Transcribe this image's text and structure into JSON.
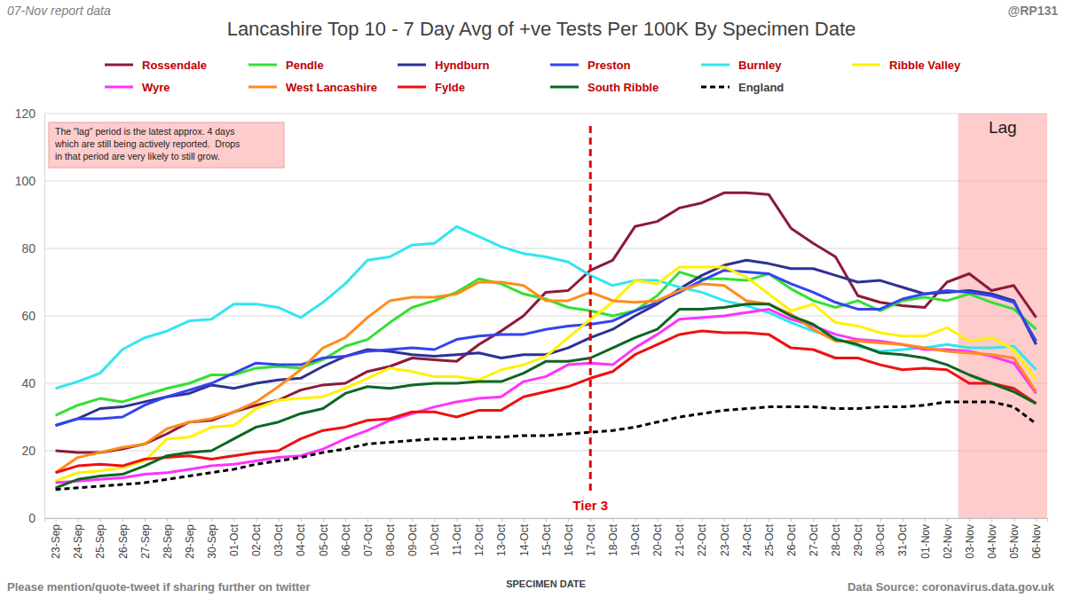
{
  "chart_data": {
    "type": "line",
    "title": "Lancashire Top 10 - 7 Day Avg of +ve Tests Per 100K By Specimen Date",
    "header_left": "07-Nov report data",
    "header_right": "@RP131",
    "x_label": "SPECIMEN DATE",
    "footer_left": "Please mention/quote-tweet if sharing further on twitter",
    "footer_right": "Data Source: coronavirus.data.gov.uk",
    "note": [
      "The \"lag\" period is the latest approx. 4 days",
      "which are still being actively reported.  Drops",
      "in that period are very likely to still grow."
    ],
    "vline": {
      "label": "Tier 3",
      "x": "17-Oct"
    },
    "shaded_region": {
      "label": "Lag",
      "from": "03-Nov",
      "to": "06-Nov"
    },
    "x": [
      "23-Sep",
      "24-Sep",
      "25-Sep",
      "26-Sep",
      "27-Sep",
      "28-Sep",
      "29-Sep",
      "30-Sep",
      "01-Oct",
      "02-Oct",
      "03-Oct",
      "04-Oct",
      "05-Oct",
      "06-Oct",
      "07-Oct",
      "08-Oct",
      "09-Oct",
      "10-Oct",
      "11-Oct",
      "12-Oct",
      "13-Oct",
      "14-Oct",
      "15-Oct",
      "16-Oct",
      "17-Oct",
      "18-Oct",
      "19-Oct",
      "20-Oct",
      "21-Oct",
      "22-Oct",
      "23-Oct",
      "24-Oct",
      "25-Oct",
      "26-Oct",
      "27-Oct",
      "28-Oct",
      "29-Oct",
      "30-Oct",
      "31-Oct",
      "01-Nov",
      "02-Nov",
      "03-Nov",
      "04-Nov",
      "05-Nov",
      "06-Nov"
    ],
    "ylim": [
      0,
      120
    ],
    "yticks": [
      0,
      20,
      40,
      60,
      80,
      100,
      120
    ],
    "grid": true,
    "legend": "top",
    "series": [
      {
        "name": "Rossendale",
        "color": "#8b1a3a",
        "values": [
          20,
          19.5,
          19.5,
          20.5,
          22,
          25,
          28.5,
          29,
          31.5,
          33.5,
          35,
          38,
          39.5,
          40,
          43.5,
          45,
          47.5,
          47,
          46.5,
          51.5,
          55.5,
          60,
          67,
          67.5,
          73.5,
          76.5,
          86.5,
          88,
          92,
          93.5,
          96.5,
          96.5,
          96,
          86,
          81.5,
          77.5,
          66,
          64,
          63,
          62.5,
          70,
          72.5,
          67.5,
          69,
          59.5
        ]
      },
      {
        "name": "Pendle",
        "color": "#33e033",
        "values": [
          30.5,
          33.5,
          35.5,
          34.5,
          36.5,
          38.5,
          40,
          42.5,
          42.5,
          44.5,
          45,
          44.5,
          47,
          51,
          53,
          58,
          62.5,
          64.5,
          67,
          71,
          69.5,
          66.5,
          65,
          62.5,
          61.5,
          60,
          61.5,
          66,
          73,
          71,
          71,
          70.5,
          72.5,
          68,
          64.5,
          62.5,
          64.5,
          61.5,
          64.5,
          65.5,
          64.5,
          66.5,
          64,
          62,
          56
        ]
      },
      {
        "name": "Hyndburn",
        "color": "#2e3192",
        "values": [
          27.5,
          29.5,
          32.5,
          33,
          34.5,
          36,
          37,
          39.5,
          38.5,
          40,
          41,
          41.5,
          45,
          48,
          50,
          49.5,
          48.5,
          48,
          48.5,
          49,
          47.5,
          48.5,
          48.5,
          50.5,
          53.5,
          56,
          60,
          63.5,
          68,
          72,
          75,
          76.5,
          75.5,
          74,
          74,
          72,
          70,
          70.5,
          68.5,
          66.5,
          67,
          67.5,
          66.5,
          64.5,
          51.5
        ]
      },
      {
        "name": "Preston",
        "color": "#3344ee",
        "values": [
          27.5,
          29.5,
          29.5,
          30,
          33.5,
          36,
          38,
          40,
          43,
          46,
          45.5,
          45.5,
          47.5,
          48,
          49.5,
          50,
          50.5,
          50,
          53,
          54,
          54.5,
          54.5,
          56,
          57,
          57.5,
          58.5,
          61.5,
          64,
          67,
          70.5,
          73.5,
          73,
          72.5,
          69.5,
          67,
          64,
          62,
          62,
          65,
          66.5,
          67.5,
          67,
          66,
          64,
          52.5
        ]
      },
      {
        "name": "Burnley",
        "color": "#33e5f0",
        "values": [
          38.5,
          40.5,
          43,
          50,
          53.5,
          55.5,
          58.5,
          59,
          63.5,
          63.5,
          62.5,
          59.5,
          64,
          69.5,
          76.5,
          77.5,
          81,
          81.5,
          86.5,
          83.5,
          80.5,
          78.5,
          77.5,
          76,
          72,
          69,
          70.5,
          70.5,
          68.5,
          67,
          64.5,
          63,
          61,
          58,
          55.5,
          53.5,
          51,
          49.5,
          50,
          50.5,
          51.5,
          50.5,
          50.5,
          51,
          44
        ]
      },
      {
        "name": "Ribble Valley",
        "color": "#fff200",
        "values": [
          11,
          13.5,
          14,
          15,
          17,
          23.5,
          24,
          27,
          27.5,
          32.5,
          35,
          35.5,
          36,
          38.5,
          41.5,
          44.5,
          43.5,
          42,
          42,
          41,
          44,
          45.5,
          48,
          53.5,
          59,
          64,
          70.5,
          69.5,
          74.5,
          74.5,
          74.5,
          71.5,
          66.5,
          61.5,
          63.5,
          58,
          57,
          55,
          54,
          54,
          56.5,
          52.5,
          53.5,
          50,
          41
        ]
      },
      {
        "name": "Wyre",
        "color": "#ff33ff",
        "values": [
          10.5,
          11,
          11.5,
          12,
          13,
          13.5,
          14.5,
          15.5,
          16,
          17,
          18,
          18.5,
          20.5,
          23.5,
          26,
          29,
          31,
          33,
          34.5,
          35.5,
          36,
          40.5,
          42,
          45.5,
          46,
          45.5,
          50.5,
          54.5,
          59,
          59.5,
          60,
          61,
          62,
          59,
          57,
          54.5,
          53,
          52.5,
          51.5,
          50,
          50,
          49.5,
          48,
          46,
          37
        ]
      },
      {
        "name": "West Lancashire",
        "color": "#ff8c1a",
        "values": [
          13.5,
          18,
          19.5,
          21,
          22,
          26.5,
          28.5,
          29.5,
          31.5,
          34.5,
          39,
          44,
          50.5,
          53.5,
          59.5,
          64.5,
          65.5,
          65.5,
          66.5,
          70,
          70,
          69,
          64.5,
          64.5,
          67,
          64.5,
          64,
          64.5,
          67.5,
          69.5,
          69,
          64.5,
          63.5,
          60.5,
          56,
          52.5,
          52.5,
          52,
          51.5,
          50.5,
          49.5,
          49,
          48.5,
          47.5,
          37.5
        ]
      },
      {
        "name": "Fylde",
        "color": "#ee1111",
        "values": [
          13.5,
          15.5,
          16,
          15.5,
          17.5,
          18,
          18.5,
          17.5,
          18.5,
          19.5,
          20,
          23.5,
          26,
          27,
          29,
          29.5,
          31.5,
          31.5,
          30,
          32,
          32,
          36,
          37.5,
          39,
          41.5,
          43.5,
          48.5,
          51.5,
          54.5,
          55.5,
          55,
          55,
          54.5,
          50.5,
          50,
          47.5,
          47.5,
          45.5,
          44,
          44.5,
          44,
          40,
          40,
          38.5,
          34
        ]
      },
      {
        "name": "South Ribble",
        "color": "#0b6623",
        "values": [
          9,
          11.5,
          12.5,
          13,
          15.5,
          18.5,
          19.5,
          20,
          23.5,
          27,
          28.5,
          31,
          32.5,
          37,
          39,
          38.5,
          39.5,
          40,
          40,
          40.5,
          40.5,
          43,
          46.5,
          46.5,
          47.5,
          50.5,
          53.5,
          56,
          62,
          62,
          62.5,
          63.5,
          63.5,
          60,
          57.5,
          53,
          51.5,
          49,
          48.5,
          47.5,
          45.5,
          42.5,
          40,
          37.5,
          34
        ]
      },
      {
        "name": "England",
        "color": "#000000",
        "line_style": "dashed",
        "values": [
          8.5,
          9,
          9.5,
          10,
          10.5,
          11.5,
          12.5,
          13.5,
          14.5,
          16,
          17,
          18,
          19.5,
          20.5,
          22,
          22.5,
          23,
          23.5,
          23.5,
          24,
          24,
          24.5,
          24.5,
          25,
          25.5,
          26,
          27,
          28.5,
          30,
          31,
          32,
          32.5,
          33,
          33,
          33,
          32.5,
          32.5,
          33,
          33,
          33.5,
          34.5,
          34.5,
          34.5,
          33,
          28
        ]
      }
    ]
  }
}
